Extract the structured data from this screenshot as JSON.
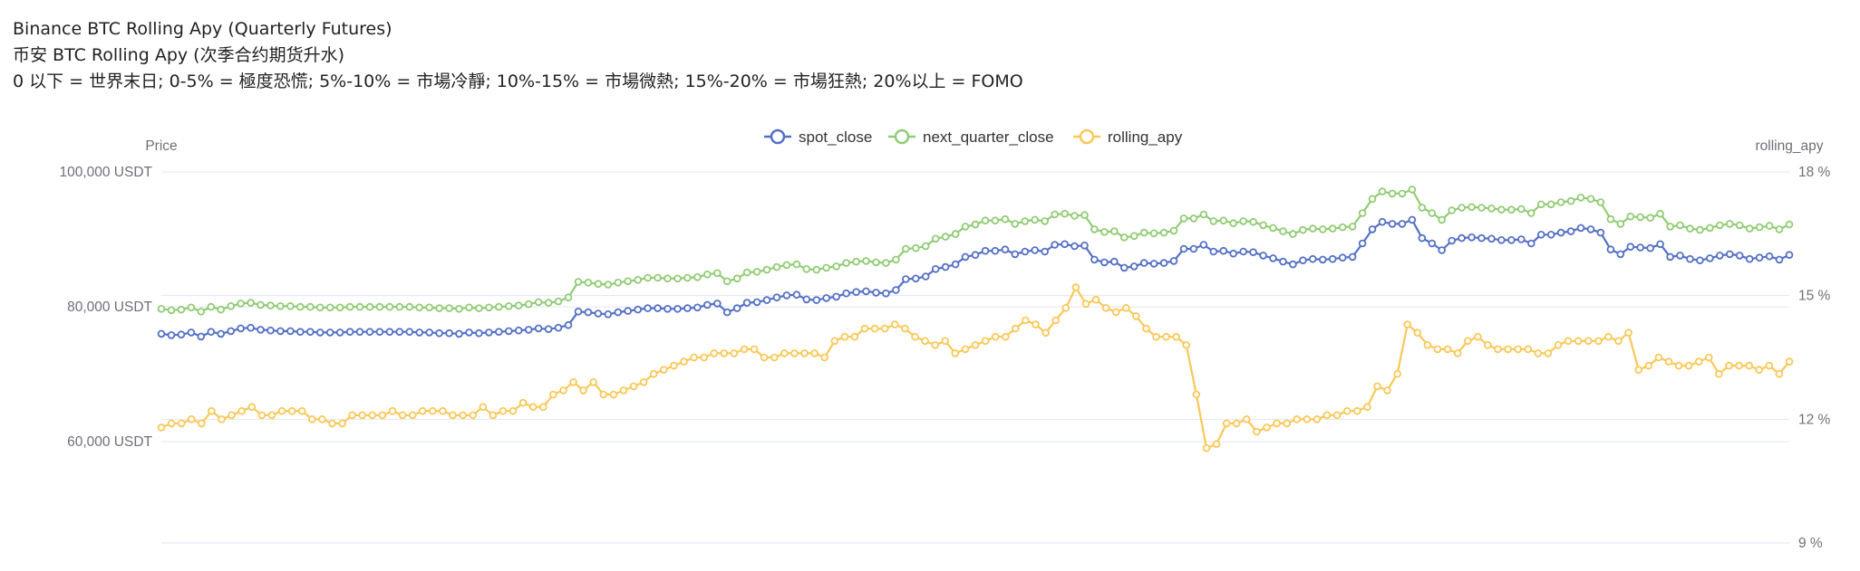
{
  "header": {
    "title": "Binance BTC Rolling Apy (Quarterly Futures)",
    "subtitle": "币安 BTC Rolling Apy (次季合约期货升水)",
    "legend_note": "0 以下 = 世界末日; 0-5% = 極度恐慌; 5%-10% = 市場冷靜; 10%-15% = 市場微熱; 15%-20% = 市場狂熱; 20%以上 = FOMO"
  },
  "colors": {
    "spot_close": "#5470c6",
    "next_quarter_close": "#91cc75",
    "rolling_apy": "#fac858",
    "grid": "#e0e6f1",
    "axis_text": "#6e7079"
  },
  "chart_data": {
    "type": "line",
    "grid": true,
    "legend_position": "top-center",
    "legend": [
      "spot_close",
      "next_quarter_close",
      "rolling_apy"
    ],
    "y_left": {
      "name": "Price",
      "range": [
        45000,
        100000
      ],
      "ticks": [
        60000,
        80000,
        100000
      ],
      "tick_labels": [
        "60,000 USDT",
        "80,000 USDT",
        "100,000 USDT"
      ]
    },
    "y_right": {
      "name": "rolling_apy",
      "range": [
        9,
        18
      ],
      "ticks": [
        9,
        12,
        15,
        18
      ],
      "tick_labels": [
        "9 %",
        "12 %",
        "15 %",
        "18 %"
      ]
    },
    "series": [
      {
        "name": "spot_close",
        "axis": "left",
        "values": [
          76000,
          75800,
          75900,
          76200,
          75600,
          76300,
          76000,
          76400,
          76800,
          76900,
          76600,
          76500,
          76400,
          76400,
          76300,
          76300,
          76200,
          76200,
          76200,
          76300,
          76300,
          76300,
          76300,
          76300,
          76300,
          76300,
          76200,
          76200,
          76100,
          76100,
          76000,
          76200,
          76100,
          76200,
          76300,
          76400,
          76500,
          76600,
          76800,
          76700,
          76900,
          77300,
          79300,
          79200,
          79000,
          78900,
          79200,
          79400,
          79600,
          79800,
          79800,
          79700,
          79700,
          79800,
          79900,
          80300,
          80500,
          79200,
          79800,
          80600,
          80700,
          81000,
          81400,
          81700,
          81800,
          81100,
          81000,
          81300,
          81500,
          82000,
          82200,
          82300,
          82100,
          82000,
          82500,
          84100,
          84200,
          84500,
          85600,
          85900,
          86300,
          87400,
          87700,
          88300,
          88300,
          88500,
          87800,
          88200,
          88400,
          88200,
          89200,
          89300,
          89000,
          89100,
          87000,
          86600,
          86700,
          85800,
          86000,
          86500,
          86400,
          86500,
          86800,
          88600,
          88600,
          89200,
          88200,
          88300,
          87900,
          88200,
          88100,
          87600,
          87200,
          86700,
          86300,
          86900,
          87100,
          87000,
          87100,
          87300,
          87400,
          89400,
          91500,
          92600,
          92300,
          92300,
          92900,
          90200,
          89400,
          88400,
          89800,
          90200,
          90300,
          90200,
          90100,
          89900,
          89900,
          90000,
          89400,
          90700,
          90700,
          91000,
          91200,
          91700,
          91500,
          91000,
          88500,
          87800,
          88900,
          88800,
          88700,
          89300,
          87400,
          87600,
          87100,
          86900,
          87200,
          87600,
          87800,
          87600,
          87100,
          87300,
          87500,
          87000,
          87700
        ]
      },
      {
        "name": "next_quarter_close",
        "axis": "left",
        "values": [
          79700,
          79500,
          79600,
          79900,
          79300,
          80000,
          79600,
          80100,
          80500,
          80600,
          80300,
          80200,
          80100,
          80100,
          80000,
          80000,
          79900,
          79900,
          79900,
          80000,
          80000,
          80000,
          80000,
          80000,
          80000,
          80000,
          79900,
          79900,
          79800,
          79800,
          79700,
          79900,
          79800,
          79900,
          80000,
          80100,
          80200,
          80400,
          80700,
          80600,
          80800,
          81400,
          83700,
          83600,
          83400,
          83300,
          83600,
          83800,
          84000,
          84300,
          84300,
          84200,
          84200,
          84300,
          84400,
          84800,
          85000,
          83800,
          84200,
          85100,
          85200,
          85500,
          85900,
          86200,
          86300,
          85600,
          85500,
          85800,
          86000,
          86500,
          86700,
          86800,
          86600,
          86500,
          87000,
          88600,
          88700,
          89000,
          90100,
          90400,
          90800,
          91900,
          92200,
          92800,
          92800,
          93000,
          92300,
          92700,
          92900,
          92700,
          93700,
          93800,
          93500,
          93600,
          91500,
          91100,
          91200,
          90300,
          90500,
          91000,
          90900,
          91000,
          91300,
          93100,
          93100,
          93700,
          92700,
          92800,
          92400,
          92700,
          92600,
          92100,
          91700,
          91200,
          90800,
          91400,
          91600,
          91500,
          91600,
          91800,
          91900,
          93900,
          96000,
          97100,
          96800,
          96800,
          97400,
          94700,
          93900,
          92900,
          94300,
          94700,
          94800,
          94700,
          94600,
          94400,
          94400,
          94500,
          93900,
          95200,
          95200,
          95500,
          95700,
          96200,
          96000,
          95500,
          93000,
          92300,
          93400,
          93300,
          93200,
          93800,
          91900,
          92100,
          91600,
          91400,
          91700,
          92100,
          92300,
          92100,
          91600,
          91800,
          92000,
          91500,
          92200
        ]
      },
      {
        "name": "rolling_apy",
        "axis": "right",
        "values": [
          11.8,
          11.9,
          11.9,
          12.0,
          11.9,
          12.2,
          12.0,
          12.1,
          12.2,
          12.3,
          12.1,
          12.1,
          12.2,
          12.2,
          12.2,
          12.0,
          12.0,
          11.9,
          11.9,
          12.1,
          12.1,
          12.1,
          12.1,
          12.2,
          12.1,
          12.1,
          12.2,
          12.2,
          12.2,
          12.1,
          12.1,
          12.1,
          12.3,
          12.1,
          12.2,
          12.2,
          12.4,
          12.3,
          12.3,
          12.6,
          12.7,
          12.9,
          12.7,
          12.9,
          12.6,
          12.6,
          12.7,
          12.8,
          12.9,
          13.1,
          13.2,
          13.3,
          13.4,
          13.5,
          13.5,
          13.6,
          13.6,
          13.6,
          13.7,
          13.7,
          13.5,
          13.5,
          13.6,
          13.6,
          13.6,
          13.6,
          13.5,
          13.9,
          14.0,
          14.0,
          14.2,
          14.2,
          14.2,
          14.3,
          14.2,
          14.0,
          13.9,
          13.8,
          13.9,
          13.6,
          13.7,
          13.8,
          13.9,
          14.0,
          14.0,
          14.2,
          14.4,
          14.3,
          14.1,
          14.4,
          14.7,
          15.2,
          14.8,
          14.9,
          14.7,
          14.6,
          14.7,
          14.5,
          14.2,
          14.0,
          14.0,
          14.0,
          13.8,
          12.6,
          11.3,
          11.4,
          11.9,
          11.9,
          12.0,
          11.7,
          11.8,
          11.9,
          11.9,
          12.0,
          12.0,
          12.0,
          12.1,
          12.1,
          12.2,
          12.2,
          12.3,
          12.8,
          12.7,
          13.1,
          14.3,
          14.1,
          13.8,
          13.7,
          13.7,
          13.6,
          13.9,
          14.0,
          13.8,
          13.7,
          13.7,
          13.7,
          13.7,
          13.6,
          13.6,
          13.8,
          13.9,
          13.9,
          13.9,
          13.9,
          14.0,
          13.9,
          14.1,
          13.2,
          13.3,
          13.5,
          13.4,
          13.3,
          13.3,
          13.4,
          13.5,
          13.1,
          13.3,
          13.3,
          13.3,
          13.2,
          13.3,
          13.1,
          13.4
        ]
      }
    ]
  }
}
